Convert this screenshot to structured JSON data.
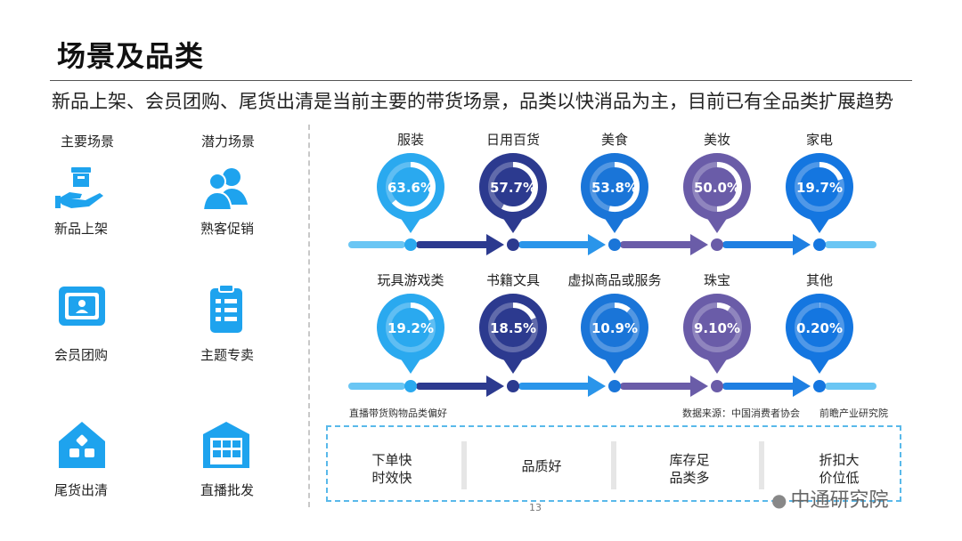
{
  "title": "场景及品类",
  "subtitle": "新品上架、会员团购、尾货出清是当前主要的带货场景，品类以快消品为主，目前已有全品类扩展趋势",
  "left": {
    "main_header": "主要场景",
    "potential_header": "潜力场景",
    "main_scenes": [
      {
        "label": "新品上架",
        "icon": "box-on-hand-icon"
      },
      {
        "label": "会员团购",
        "icon": "member-card-icon"
      },
      {
        "label": "尾货出清",
        "icon": "house-blocks-icon"
      }
    ],
    "potential_scenes": [
      {
        "label": "熟客促销",
        "icon": "users-icon"
      },
      {
        "label": "主题专卖",
        "icon": "clipboard-list-icon"
      },
      {
        "label": "直播批发",
        "icon": "warehouse-icon"
      }
    ]
  },
  "chart_data": {
    "type": "pie",
    "title": "直播带货购物品类偏好",
    "categories": [
      "服装",
      "日用百货",
      "美食",
      "美妆",
      "家电",
      "玩具游戏类",
      "书籍文具",
      "虚拟商品或服务",
      "珠宝",
      "其他"
    ],
    "labels": [
      "63.6%",
      "57.7%",
      "53.8%",
      "50.0%",
      "19.7%",
      "19.2%",
      "18.5%",
      "10.9%",
      "9.10%",
      "0.20%"
    ],
    "values": [
      63.6,
      57.7,
      53.8,
      50.0,
      19.7,
      19.2,
      18.5,
      10.9,
      9.1,
      0.2
    ],
    "unit": "%",
    "colors": [
      "#2aa9ef",
      "#2c3a8f",
      "#1a75d8",
      "#6a5ca8",
      "#1476e0",
      "#2aa9ef",
      "#2c3a8f",
      "#1a75d8",
      "#6a5ca8",
      "#1476e0"
    ]
  },
  "footnotes": {
    "chart_label": "直播带货购物品类偏好",
    "source": "数据来源：中国消费者协会",
    "institute": "前瞻产业研究院"
  },
  "features": [
    "下单快\n时效快",
    "品质好",
    "库存足\n品类多",
    "折扣大\n价位低"
  ],
  "page_number": "13",
  "watermark": "中通研究院"
}
